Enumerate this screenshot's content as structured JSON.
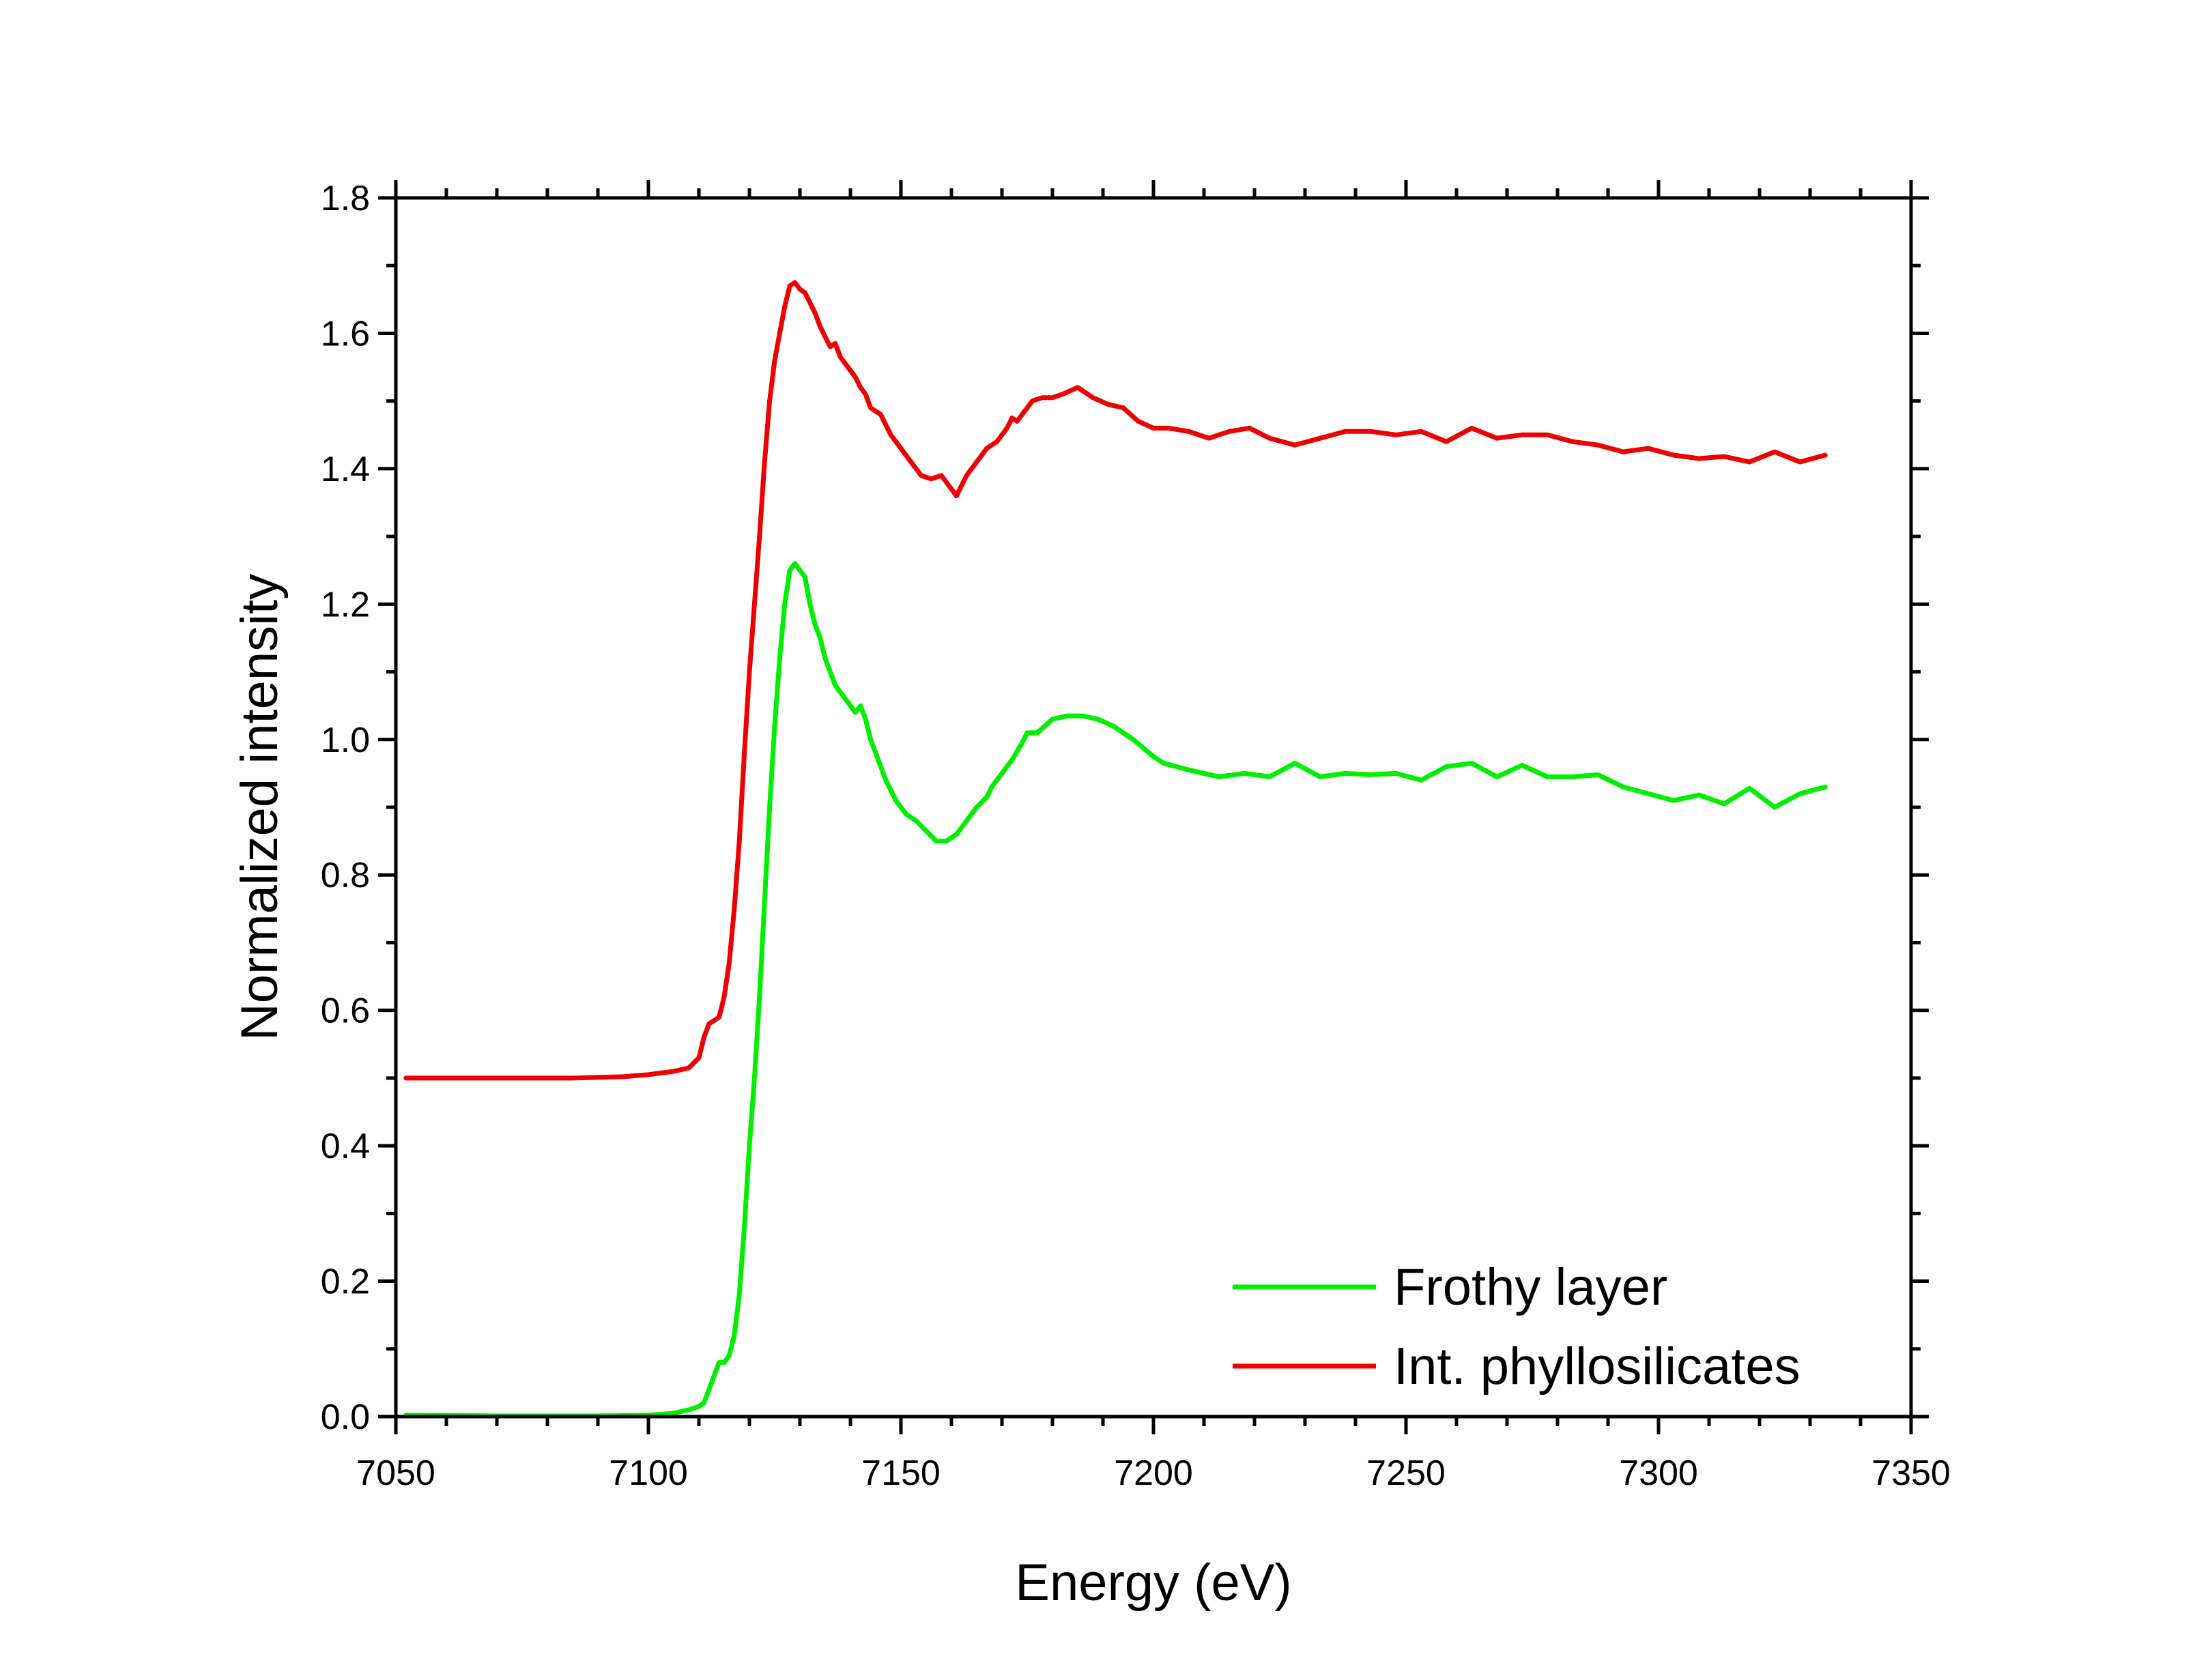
{
  "chart_data": {
    "type": "line",
    "xlabel": "Energy (eV)",
    "ylabel": "Normalized intensity",
    "xlim": [
      7050,
      7350
    ],
    "ylim": [
      0.0,
      1.8
    ],
    "x_ticks": [
      "7050",
      "7100",
      "7150",
      "7200",
      "7250",
      "7300",
      "7350"
    ],
    "y_ticks": [
      "0.0",
      "0.2",
      "0.4",
      "0.6",
      "0.8",
      "1.0",
      "1.2",
      "1.4",
      "1.6",
      "1.8"
    ],
    "grid": false,
    "legend_position": "bottom-right",
    "series": [
      {
        "name": "Frothy layer",
        "color": "#00ee00",
        "x": [
          7052,
          7070,
          7090,
          7100,
          7105,
          7108,
          7110,
          7111,
          7112,
          7113,
          7114,
          7115,
          7116,
          7117,
          7118,
          7119,
          7120,
          7121,
          7122,
          7123,
          7124,
          7125,
          7126,
          7127,
          7128,
          7129,
          7130,
          7131,
          7132,
          7133,
          7134,
          7135,
          7136,
          7137,
          7138,
          7139,
          7140,
          7141,
          7142,
          7143,
          7144,
          7145,
          7147,
          7149,
          7151,
          7153,
          7155,
          7157,
          7159,
          7160,
          7161,
          7162,
          7163,
          7165,
          7167,
          7168,
          7170,
          7172,
          7174,
          7175,
          7177,
          7180,
          7183,
          7186,
          7189,
          7192,
          7196,
          7200,
          7202,
          7207,
          7213,
          7218,
          7223,
          7228,
          7233,
          7238,
          7243,
          7248,
          7253,
          7258,
          7263,
          7268,
          7273,
          7278,
          7283,
          7288,
          7293,
          7298,
          7303,
          7308,
          7313,
          7318,
          7323,
          7328,
          7333
        ],
        "y": [
          0.002,
          0.001,
          0.001,
          0.002,
          0.005,
          0.01,
          0.015,
          0.02,
          0.04,
          0.06,
          0.08,
          0.08,
          0.09,
          0.12,
          0.18,
          0.28,
          0.4,
          0.5,
          0.62,
          0.76,
          0.9,
          1.02,
          1.12,
          1.2,
          1.25,
          1.26,
          1.25,
          1.24,
          1.2,
          1.17,
          1.15,
          1.12,
          1.1,
          1.08,
          1.07,
          1.06,
          1.05,
          1.04,
          1.05,
          1.03,
          1.0,
          0.98,
          0.94,
          0.91,
          0.89,
          0.88,
          0.865,
          0.85,
          0.85,
          0.855,
          0.86,
          0.87,
          0.88,
          0.9,
          0.915,
          0.93,
          0.95,
          0.97,
          0.995,
          1.01,
          1.01,
          1.03,
          1.035,
          1.035,
          1.03,
          1.02,
          1.0,
          0.975,
          0.965,
          0.955,
          0.945,
          0.95,
          0.945,
          0.965,
          0.945,
          0.95,
          0.948,
          0.95,
          0.94,
          0.96,
          0.965,
          0.945,
          0.962,
          0.945,
          0.945,
          0.948,
          0.93,
          0.92,
          0.91,
          0.918,
          0.905,
          0.928,
          0.9,
          0.92,
          0.93
        ]
      },
      {
        "name": "Int. phyllosilicates",
        "color": "#ee0000",
        "x": [
          7052,
          7070,
          7085,
          7095,
          7100,
          7105,
          7108,
          7110,
          7111,
          7112,
          7113,
          7114,
          7115,
          7116,
          7117,
          7118,
          7119,
          7120,
          7121,
          7122,
          7123,
          7124,
          7125,
          7126,
          7127,
          7128,
          7129,
          7130,
          7131,
          7132,
          7133,
          7134,
          7135,
          7136,
          7137,
          7138,
          7139,
          7140,
          7141,
          7142,
          7143,
          7144,
          7146,
          7148,
          7150,
          7152,
          7154,
          7156,
          7158,
          7160,
          7161,
          7162,
          7163,
          7165,
          7167,
          7169,
          7171,
          7172,
          7173,
          7174,
          7176,
          7178,
          7180,
          7182,
          7185,
          7188,
          7191,
          7194,
          7197,
          7200,
          7203,
          7207,
          7211,
          7215,
          7219,
          7223,
          7228,
          7233,
          7238,
          7243,
          7248,
          7253,
          7258,
          7263,
          7268,
          7273,
          7278,
          7283,
          7288,
          7293,
          7298,
          7303,
          7308,
          7313,
          7318,
          7323,
          7328,
          7333
        ],
        "y": [
          0.5,
          0.5,
          0.5,
          0.502,
          0.505,
          0.51,
          0.515,
          0.53,
          0.56,
          0.58,
          0.585,
          0.59,
          0.62,
          0.67,
          0.75,
          0.85,
          0.98,
          1.1,
          1.2,
          1.3,
          1.41,
          1.5,
          1.56,
          1.6,
          1.64,
          1.67,
          1.675,
          1.665,
          1.66,
          1.645,
          1.63,
          1.61,
          1.595,
          1.58,
          1.585,
          1.565,
          1.555,
          1.545,
          1.535,
          1.52,
          1.51,
          1.49,
          1.48,
          1.45,
          1.43,
          1.41,
          1.39,
          1.385,
          1.39,
          1.37,
          1.36,
          1.375,
          1.39,
          1.41,
          1.43,
          1.44,
          1.46,
          1.475,
          1.47,
          1.48,
          1.5,
          1.505,
          1.505,
          1.51,
          1.52,
          1.505,
          1.495,
          1.49,
          1.47,
          1.46,
          1.46,
          1.455,
          1.445,
          1.455,
          1.46,
          1.445,
          1.435,
          1.445,
          1.455,
          1.455,
          1.45,
          1.455,
          1.44,
          1.46,
          1.445,
          1.45,
          1.45,
          1.44,
          1.435,
          1.425,
          1.43,
          1.42,
          1.415,
          1.418,
          1.41,
          1.425,
          1.41,
          1.42
        ]
      }
    ]
  }
}
